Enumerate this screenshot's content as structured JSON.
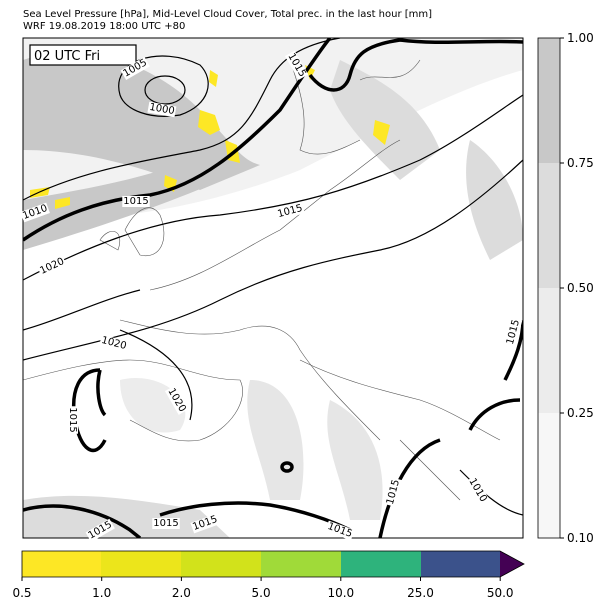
{
  "header": {
    "line1": "Sea Level Pressure [hPa], Mid-Level Cloud Cover, Total prec. in the last hour [mm]",
    "line2": "WRF 19.08.2019 18:00 UTC +80"
  },
  "time_label": "02 UTC Fri",
  "cloud_colorbar": {
    "ticks": [
      "1.00",
      "0.75",
      "0.50",
      "0.25",
      "0.10"
    ]
  },
  "precip_colorbar": {
    "ticks": [
      "0.5",
      "1.0",
      "2.0",
      "5.0",
      "10.0",
      "25.0",
      "50.0"
    ]
  },
  "contour_labels": [
    "1005",
    "1000",
    "1015",
    "1010",
    "1015",
    "1015",
    "1020",
    "1020",
    "1020",
    "1015",
    "1015",
    "1015",
    "1010",
    "1015",
    "1015",
    "1015",
    "1015"
  ]
}
